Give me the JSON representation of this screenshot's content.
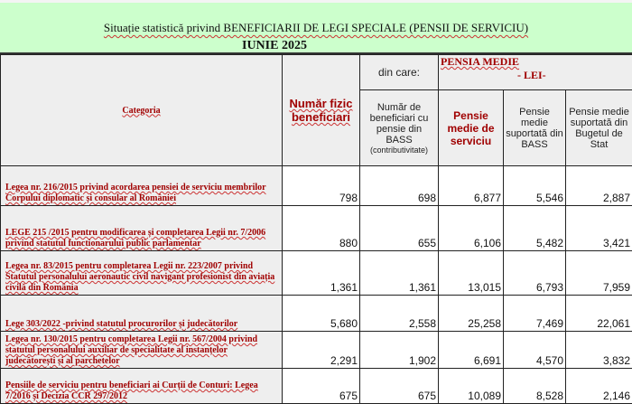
{
  "title": "Situație statistică privind BENEFICIARII DE LEGI SPECIALE (PENSII DE SERVICIU)",
  "subtitle": "IUNIE 2025",
  "headers": {
    "categoria": "Categoria",
    "numar_fizic": "Număr fizic beneficiari",
    "din_care": "din care:",
    "pensia_medie": "PENSIA MEDIE",
    "lei": "- LEI-",
    "numar_bass": "Număr de beneficiari cu pensie din BASS",
    "contributivitate": "(contributivitate)",
    "pensie_serviciu": "Pensie medie de serviciu",
    "pensie_bass": "Pensie medie suportată din BASS",
    "pensie_buget": "Pensie medie suportată din Bugetul de Stat"
  },
  "rows": [
    {
      "categoria": "Legea nr. 216/2015 privind acordarea pensiei de serviciu membrilor Corpului diplomatic și consular al României",
      "numar_fizic": "798",
      "numar_bass": "698",
      "pensie_serviciu": "6,877",
      "pensie_bass": "5,546",
      "pensie_buget": "2,887"
    },
    {
      "categoria": "LEGE 215 /2015  pentru modificarea și completarea Legii nr. 7/2006 privind statutul functionarului public parlamentar",
      "numar_fizic": "880",
      "numar_bass": "655",
      "pensie_serviciu": "6,106",
      "pensie_bass": "5,482",
      "pensie_buget": "3,421"
    },
    {
      "categoria": " Legea nr. 83/2015 pentru completarea Legii nr. 223/2007 privind Statutul personalului aeronautic civil navigant profesionist din aviația civilă din România",
      "numar_fizic": "1,361",
      "numar_bass": "1,361",
      "pensie_serviciu": "13,015",
      "pensie_bass": "6,793",
      "pensie_buget": "7,959"
    },
    {
      "categoria": "Lege 303/2022 -privind statutul procurorilor și judecătorilor",
      "numar_fizic": "5,680",
      "numar_bass": "2,558",
      "pensie_serviciu": "25,258",
      "pensie_bass": "7,469",
      "pensie_buget": "22,061"
    },
    {
      "categoria": "Legea nr. 130/2015 pentru completarea Legii nr. 567/2004 privind statutul personalului auxiliar de specialitate al instanțelor judecătorești și al parchetelor",
      "numar_fizic": "2,291",
      "numar_bass": "1,902",
      "pensie_serviciu": "6,691",
      "pensie_bass": "4,570",
      "pensie_buget": "3,832"
    },
    {
      "categoria": "Pensiile de serviciu pentru beneficiari ai Curții de Conturi: Legea 7/2016 și  Decizia CCR 297/2012",
      "numar_fizic": "675",
      "numar_bass": "675",
      "pensie_serviciu": "10,089",
      "pensie_bass": "8,528",
      "pensie_buget": "2,146"
    }
  ],
  "colors": {
    "header_band": "#ccffcc",
    "label_red": "#a00000",
    "header_bg": "#eeeeee"
  }
}
